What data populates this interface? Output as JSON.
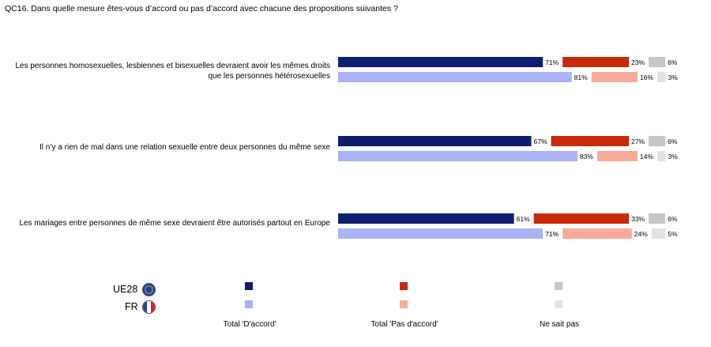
{
  "title": "QC16. Dans quelle mesure êtes-vous d’accord ou pas d’accord avec chacune des propositions suivantes ?",
  "colors": {
    "ue_accord": "#0e1e6e",
    "ue_pas": "#c82a0a",
    "ue_nsp": "#c6c6c6",
    "fr_accord": "#a9b3f6",
    "fr_pas": "#f8ab98",
    "fr_nsp": "#e2e2e2"
  },
  "chart_data": {
    "type": "bar",
    "orientation": "horizontal-stacked-divergent",
    "categories": [
      "Les personnes homosexuelles, lesbiennes et bisexuelles devraient avoir les mêmes droits que les personnes hétérosexuelles",
      "Il n’y a rien de mal dans une relation sexuelle entre deux personnes du même sexe",
      "Les mariages entre personnes de même sexe devraient être autorisés partout en Europe"
    ],
    "groups": [
      "UE28",
      "FR"
    ],
    "series": [
      {
        "name": "Total 'D'accord'",
        "UE28": [
          71,
          67,
          61
        ],
        "FR": [
          81,
          83,
          71
        ]
      },
      {
        "name": "Total 'Pas d'accord'",
        "UE28": [
          23,
          27,
          33
        ],
        "FR": [
          16,
          14,
          24
        ]
      },
      {
        "name": "Ne sait pas",
        "UE28": [
          6,
          6,
          6
        ],
        "FR": [
          3,
          3,
          5
        ]
      }
    ],
    "value_suffix": "%",
    "legend_position": "bottom"
  },
  "legend": {
    "countries": [
      "UE28",
      "FR"
    ],
    "labels": [
      "Total 'D'accord'",
      "Total 'Pas d'accord'",
      "Ne sait pas"
    ]
  }
}
